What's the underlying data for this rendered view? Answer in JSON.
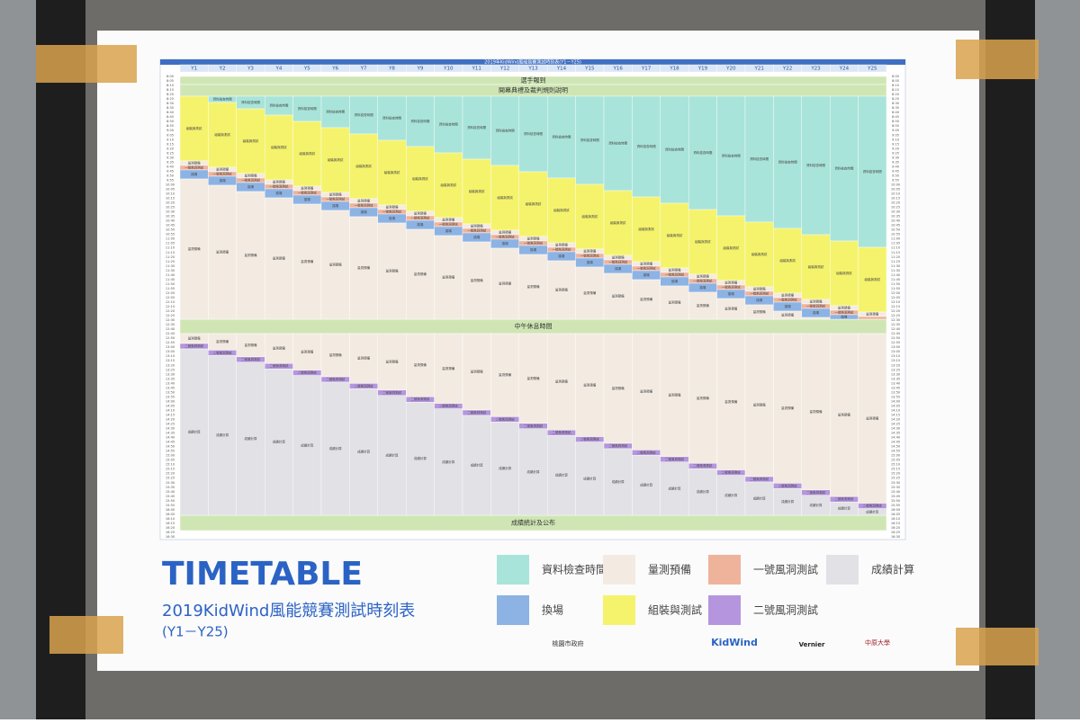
{
  "poster": {
    "title": "TIMETABLE",
    "subtitle": "2019KidWind風能競賽測試時刻表",
    "range": "(Y1－Y25)",
    "table": {
      "heading": "2019年KidWind風能競賽測試時刻表(Y1－Y25)",
      "columns": [
        "Y1",
        "Y2",
        "Y3",
        "Y4",
        "Y5",
        "Y6",
        "Y7",
        "Y8",
        "Y9",
        "Y10",
        "Y11",
        "Y12",
        "Y13",
        "Y14",
        "Y15",
        "Y16",
        "Y17",
        "Y18",
        "Y19",
        "Y20",
        "Y21",
        "Y22",
        "Y23",
        "Y24",
        "Y25"
      ],
      "times": [
        "8:00",
        "8:05",
        "8:10",
        "8:15",
        "8:20",
        "8:25",
        "8:30",
        "8:35",
        "8:40",
        "8:45",
        "8:50",
        "8:55",
        "9:00",
        "9:05",
        "9:10",
        "9:15",
        "9:20",
        "9:25",
        "9:30",
        "9:35",
        "9:40",
        "9:45",
        "9:50",
        "9:55",
        "10:00",
        "10:05",
        "10:10",
        "10:15",
        "10:20",
        "10:25",
        "10:30",
        "10:35",
        "10:40",
        "10:45",
        "10:50",
        "10:55",
        "11:00",
        "11:05",
        "11:10",
        "11:15",
        "11:20",
        "11:25",
        "11:30",
        "11:35",
        "11:40",
        "11:45",
        "11:50",
        "11:55",
        "12:00",
        "12:05",
        "12:10",
        "12:15",
        "12:20",
        "12:25",
        "12:30",
        "12:35",
        "12:40",
        "12:45",
        "12:50",
        "12:55",
        "13:00",
        "13:05",
        "13:10",
        "13:15",
        "13:20",
        "13:25",
        "13:30",
        "13:35",
        "13:40",
        "13:45",
        "13:50",
        "13:55",
        "14:00",
        "14:05",
        "14:10",
        "14:15",
        "14:20",
        "14:25",
        "14:30",
        "14:35",
        "14:40",
        "14:45",
        "14:50",
        "14:55",
        "15:00",
        "15:05",
        "15:10",
        "15:15",
        "15:20",
        "15:25",
        "15:30",
        "15:35",
        "15:40",
        "15:45",
        "15:50",
        "15:55",
        "16:00",
        "16:05",
        "16:10",
        "16:15",
        "16:20",
        "16:25",
        "16:30"
      ],
      "bands": [
        "選手報到",
        "開幕典禮及裁判規則說明",
        "中午休息時間",
        "成績統計及公布"
      ]
    },
    "legend": [
      {
        "label": "資料檢查時間",
        "color": "#a9e4da"
      },
      {
        "label": "量測預備",
        "color": "#f3ebe2"
      },
      {
        "label": "一號風洞測試",
        "color": "#efb39c"
      },
      {
        "label": "成績計算",
        "color": "#e2e1e6"
      },
      {
        "label": "換場",
        "color": "#8cb3e4"
      },
      {
        "label": "組裝與測試",
        "color": "#f5f36c"
      },
      {
        "label": "二號風洞測試",
        "color": "#b596de"
      }
    ],
    "sponsors": [
      "桃園市政府",
      "KidWind",
      "Vernier",
      "中原大學"
    ]
  }
}
